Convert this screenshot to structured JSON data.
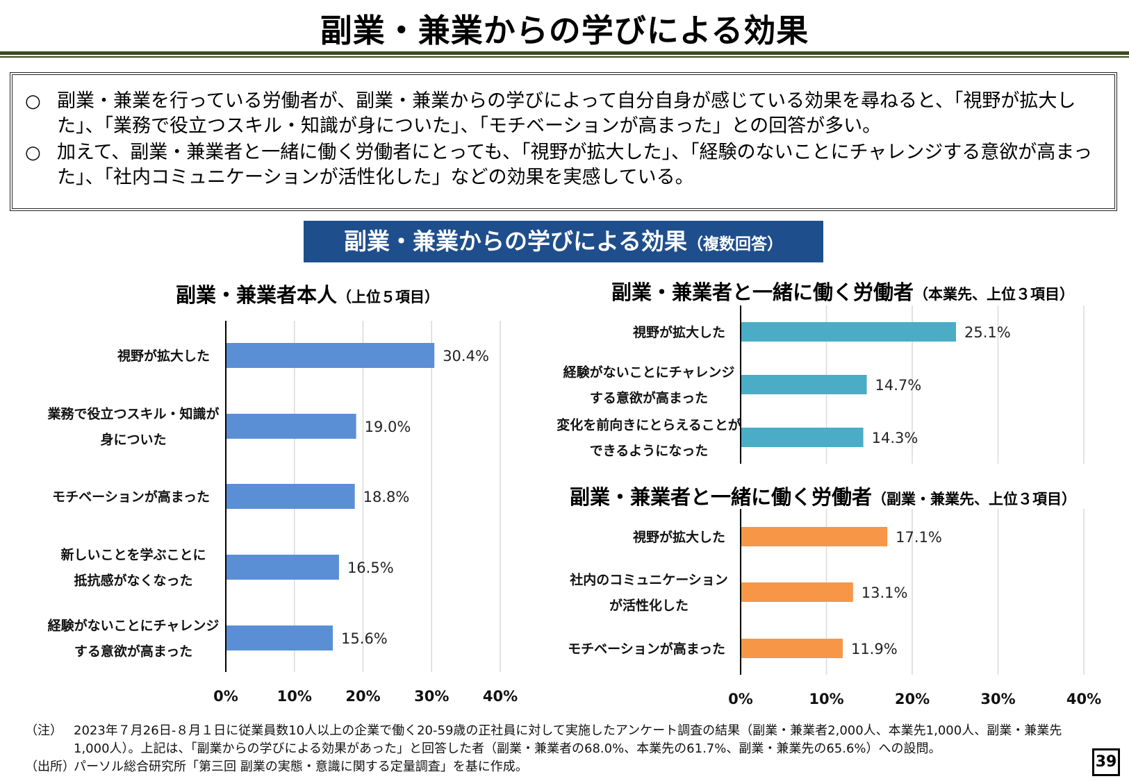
{
  "title": "副業・兼業からの学びによる効果",
  "summary": [
    "副業・兼業を行っている労働者が、副業・兼業からの学びによって自分自身が感じている効果を尋ねると、「視野が拡大した」、「業務で役立つスキル・知識が身についた」、「モチベーションが高まった」との回答が多い。",
    "加えて、副業・兼業者と一緒に働く労働者にとっても、「視野が拡大した」、「経験のないことにチャレンジする意欲が高まった」、「社内コミュニケーションが活性化した」などの効果を実感している。"
  ],
  "bullet_symbol": "○",
  "banner": {
    "main": "副業・兼業からの学びによる効果",
    "sub": "（複数回答）"
  },
  "chart_data": [
    {
      "type": "bar",
      "orientation": "horizontal",
      "title": "副業・兼業者本人",
      "subtitle": "（上位５項目）",
      "categories": [
        [
          "視野が拡大した"
        ],
        [
          "業務で役立つスキル・知識が",
          "身についた"
        ],
        [
          "モチベーションが高まった"
        ],
        [
          "新しいことを学ぶことに",
          "抵抗感がなくなった"
        ],
        [
          "経験がないことにチャレンジ",
          "する意欲が高まった"
        ]
      ],
      "values": [
        30.4,
        19.0,
        18.8,
        16.5,
        15.6
      ],
      "value_labels": [
        "30.4%",
        "19.0%",
        "18.8%",
        "16.5%",
        "15.6%"
      ],
      "xlim": [
        0,
        40
      ],
      "ticks": [
        "0%",
        "10%",
        "20%",
        "30%",
        "40%"
      ],
      "grid": true,
      "color": "#5a8fd6"
    },
    {
      "type": "bar",
      "orientation": "horizontal",
      "title": "副業・兼業者と一緒に働く労働者",
      "subtitle": "（本業先、上位３項目）",
      "categories": [
        [
          "視野が拡大した"
        ],
        [
          "経験がないことにチャレンジ",
          "する意欲が高まった"
        ],
        [
          "変化を前向きにとらえることが",
          "できるようになった"
        ]
      ],
      "values": [
        25.1,
        14.7,
        14.3
      ],
      "value_labels": [
        "25.1%",
        "14.7%",
        "14.3%"
      ],
      "xlim": [
        0,
        40
      ],
      "ticks": [],
      "grid": true,
      "color": "#4bacc6"
    },
    {
      "type": "bar",
      "orientation": "horizontal",
      "title": "副業・兼業者と一緒に働く労働者",
      "subtitle": "（副業・兼業先、上位３項目）",
      "categories": [
        [
          "視野が拡大した"
        ],
        [
          "社内のコミュニケーション",
          "が活性化した"
        ],
        [
          "モチベーションが高まった"
        ]
      ],
      "values": [
        17.1,
        13.1,
        11.9
      ],
      "value_labels": [
        "17.1%",
        "13.1%",
        "11.9%"
      ],
      "xlim": [
        0,
        40
      ],
      "ticks": [
        "0%",
        "10%",
        "20%",
        "30%",
        "40%"
      ],
      "grid": true,
      "color": "#f79646"
    }
  ],
  "notes": [
    {
      "key": "（注）",
      "text": "2023年７月26日-８月１日に従業員数10人以上の企業で働く20-59歳の正社員に対して実施したアンケート調査の結果（副業・兼業者2,000人、本業先1,000人、副業・兼業先1,000人）。上記は、「副業からの学びによる効果があった」と回答した者（副業・兼業者の68.0%、本業先の61.7%、副業・兼業先の65.6%）への設問。"
    },
    {
      "key": "（出所）",
      "text": "パーソル総合研究所「第三回 副業の実態・意識に関する定量調査」を基に作成。"
    }
  ],
  "page_number": "39"
}
